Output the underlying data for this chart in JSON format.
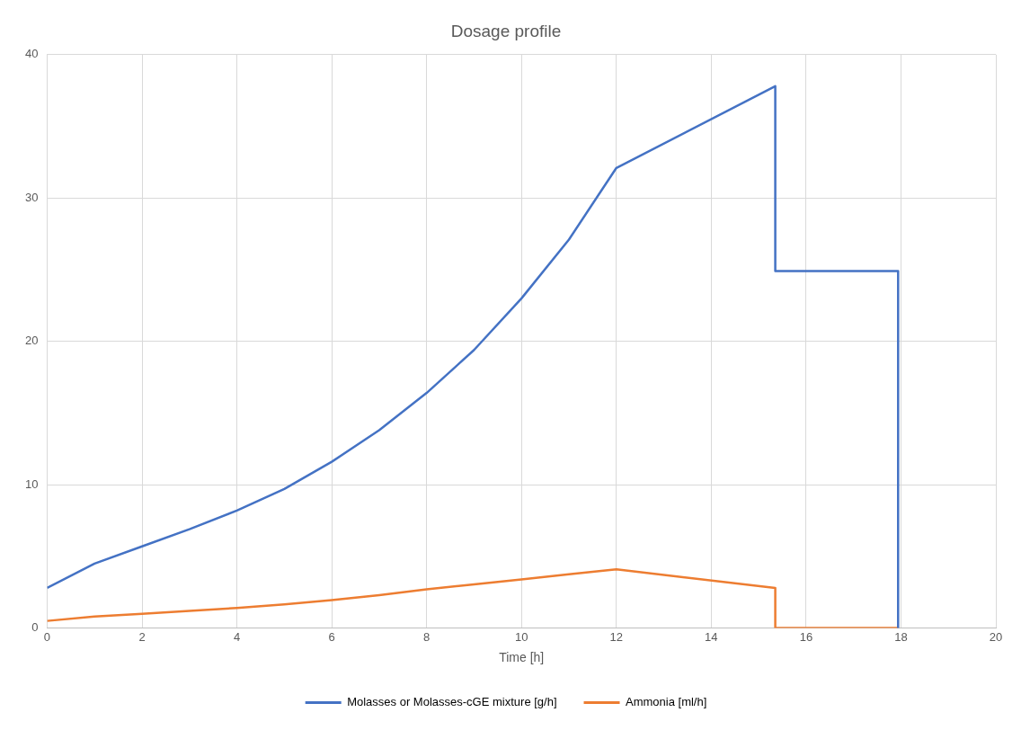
{
  "chart_data": {
    "type": "line",
    "title": "Dosage profile",
    "xlabel": "Time [h]",
    "xlim": [
      0,
      20
    ],
    "xticks": [
      0,
      2,
      4,
      6,
      8,
      10,
      12,
      14,
      16,
      18,
      20
    ],
    "ylim": [
      0,
      40
    ],
    "yticks": [
      0,
      10,
      20,
      30,
      40
    ],
    "grid": true,
    "legend": "bottom",
    "marker": "none",
    "line_style": "solid",
    "series": [
      {
        "name": "Molasses or Molasses-cGE mixture [g/h]",
        "color": "#4472c4",
        "x": [
          0,
          1,
          2,
          3,
          4,
          5,
          6,
          7,
          8,
          9,
          10,
          11,
          12,
          15.35,
          15.35,
          17.94,
          17.94
        ],
        "values": [
          2.8,
          4.5,
          5.7,
          6.9,
          8.2,
          9.7,
          11.6,
          13.8,
          16.4,
          19.4,
          23.0,
          27.1,
          32.1,
          37.8,
          24.9,
          24.9,
          0
        ]
      },
      {
        "name": "Ammonia [ml/h]",
        "color": "#ed7d31",
        "x": [
          0,
          1,
          2,
          3,
          4,
          5,
          6,
          7,
          8,
          9,
          10,
          11,
          12,
          15.35,
          15.35,
          17.94
        ],
        "values": [
          0.5,
          0.8,
          1.0,
          1.2,
          1.4,
          1.65,
          1.95,
          2.3,
          2.7,
          3.05,
          3.4,
          3.75,
          4.1,
          2.8,
          0,
          0
        ]
      }
    ]
  }
}
